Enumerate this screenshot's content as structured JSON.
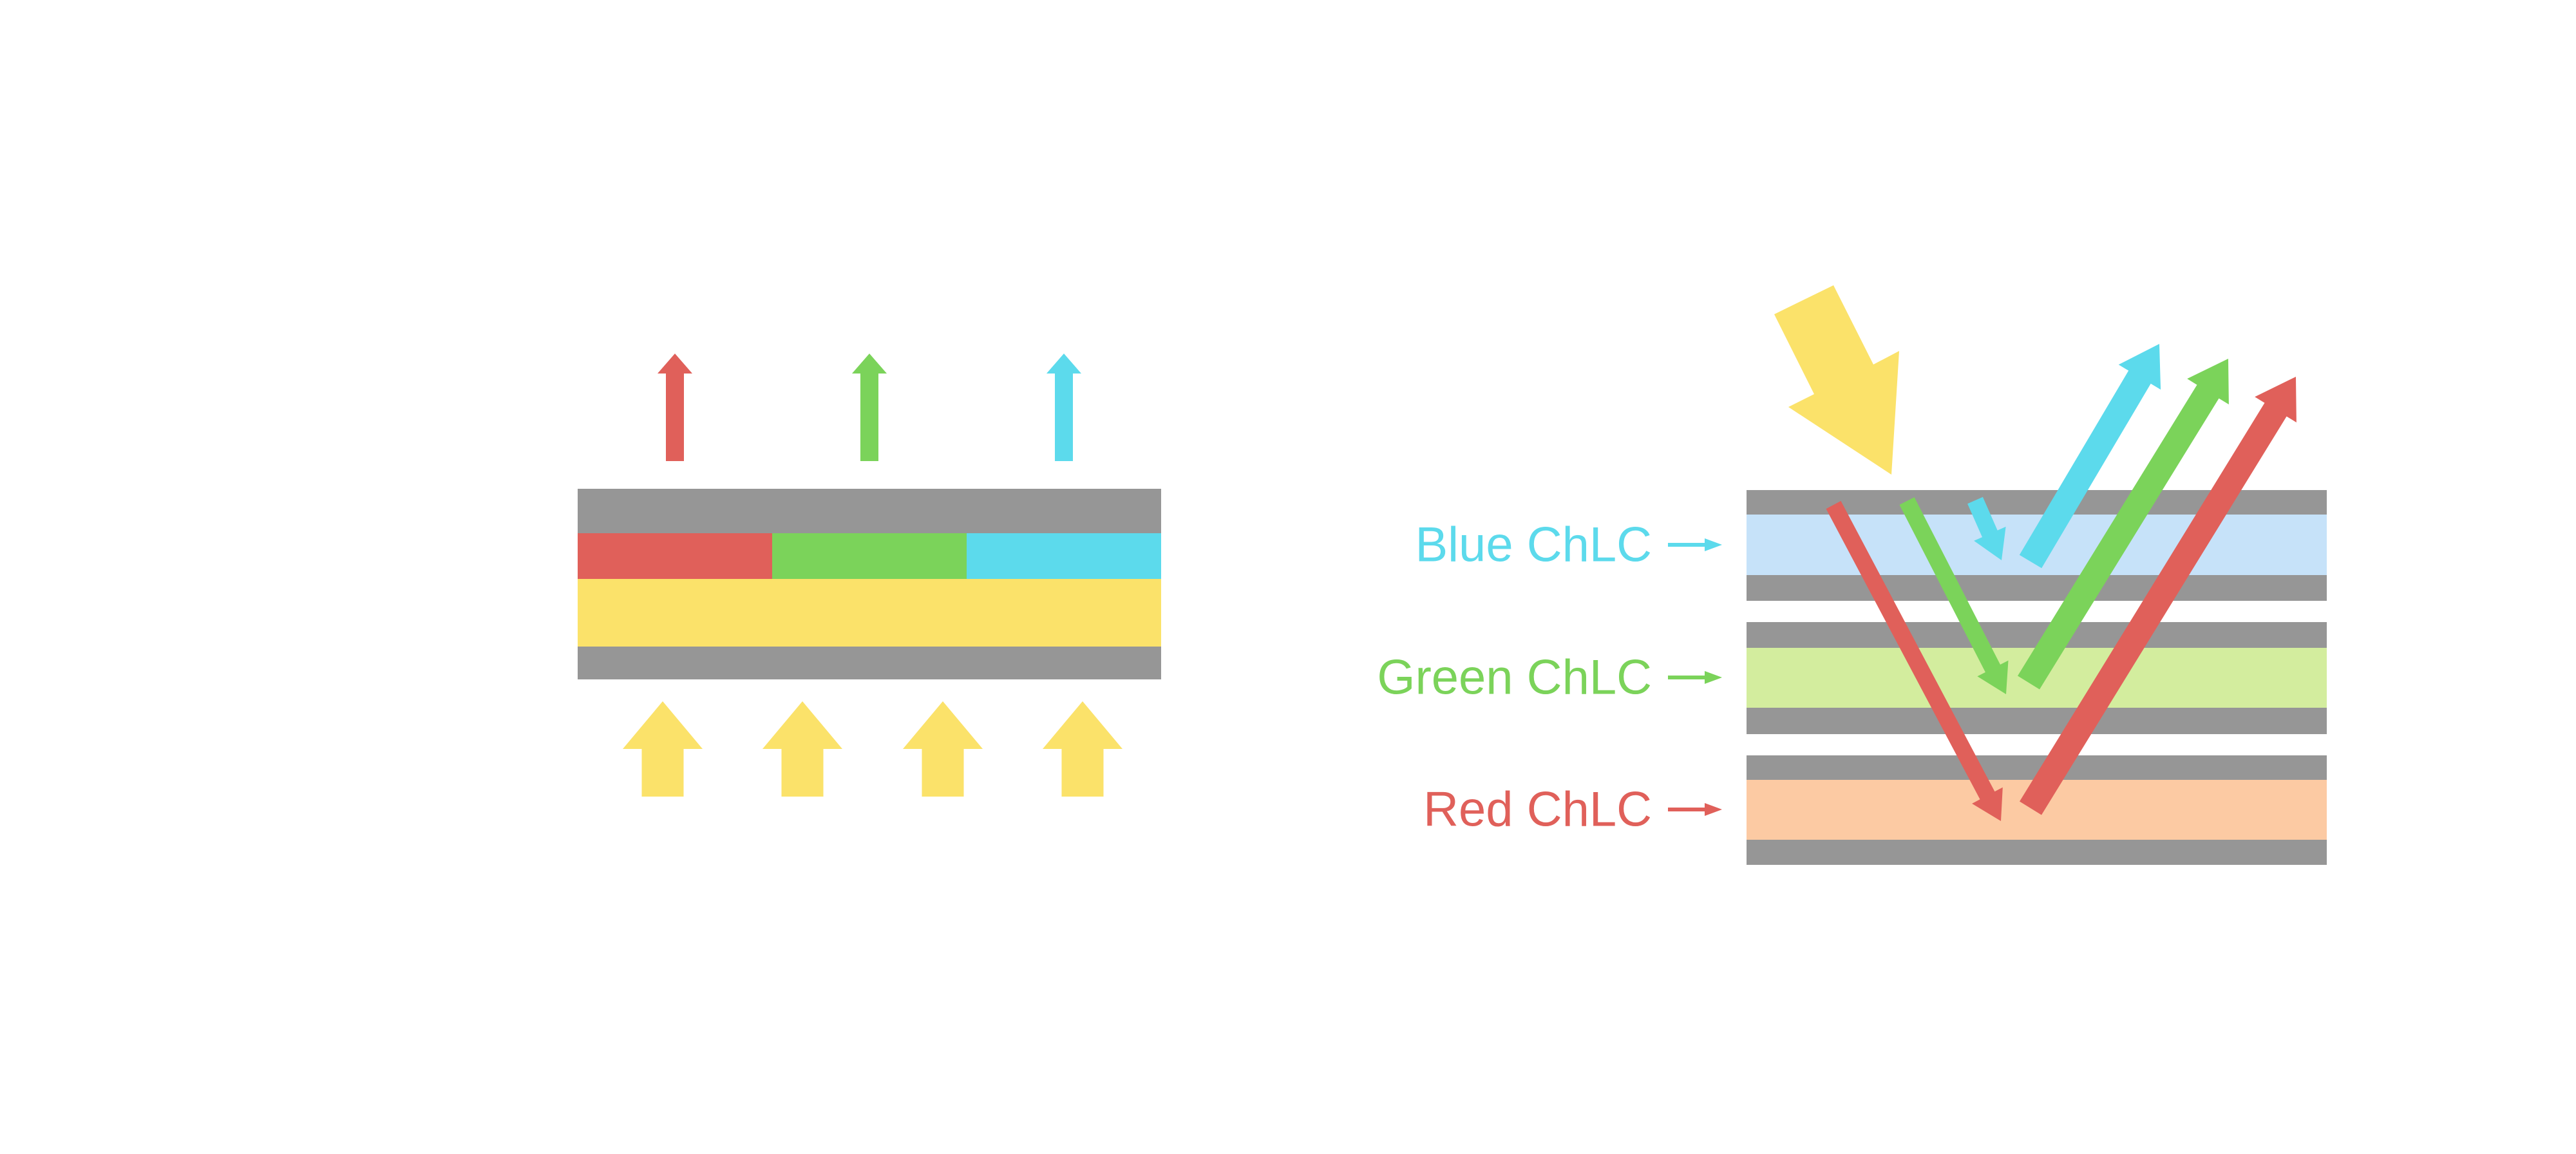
{
  "background": "#ffffff",
  "colors": {
    "gray": "#969696",
    "red": "#e0605a",
    "green": "#7bd35a",
    "cyan": "#5cdaec",
    "yellow": "#fbe26a",
    "light_blue": "#c6e2f9",
    "light_green": "#d3ed9e",
    "peach": "#fccaa3"
  },
  "left_diagram": {
    "pixel_segment_colors": [
      "red",
      "green",
      "cyan"
    ],
    "emitted_arrow_colors": [
      "red",
      "green",
      "cyan"
    ],
    "backlight_arrow_count": 4
  },
  "right_diagram": {
    "incident_arrow_color": "yellow",
    "reflected_arrow_colors": [
      "cyan",
      "green",
      "red"
    ],
    "labels": [
      {
        "text": "Blue ChLC"
      },
      {
        "text": "Green ChLC"
      },
      {
        "text": "Red ChLC"
      }
    ]
  }
}
